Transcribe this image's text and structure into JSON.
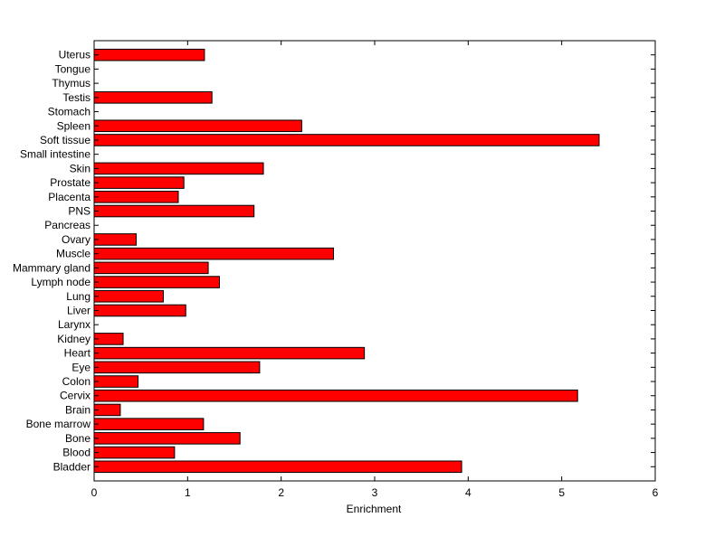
{
  "chart_data": {
    "type": "bar",
    "orientation": "horizontal",
    "title": "",
    "xlabel": "Enrichment",
    "ylabel": "",
    "xlim": [
      0,
      6
    ],
    "xticks": [
      "0",
      "1",
      "2",
      "3",
      "4",
      "5",
      "6"
    ],
    "grid": false,
    "legend": "none",
    "bar_color": "#ff0000",
    "bar_edge_color": "#000000",
    "categories": [
      "Uterus",
      "Tongue",
      "Thymus",
      "Testis",
      "Stomach",
      "Spleen",
      "Soft tissue",
      "Small intestine",
      "Skin",
      "Prostate",
      "Placenta",
      "PNS",
      "Pancreas",
      "Ovary",
      "Muscle",
      "Mammary gland",
      "Lymph node",
      "Lung",
      "Liver",
      "Larynx",
      "Kidney",
      "Heart",
      "Eye",
      "Colon",
      "Cervix",
      "Brain",
      "Bone marrow",
      "Bone",
      "Blood",
      "Bladder"
    ],
    "values": [
      1.18,
      0,
      0,
      1.26,
      0,
      2.22,
      5.4,
      0,
      1.81,
      0.96,
      0.9,
      1.71,
      0,
      0.45,
      2.56,
      1.22,
      1.34,
      0.74,
      0.98,
      0,
      0.31,
      2.89,
      1.77,
      0.47,
      5.17,
      0.28,
      1.17,
      1.56,
      0.86,
      3.93
    ]
  }
}
